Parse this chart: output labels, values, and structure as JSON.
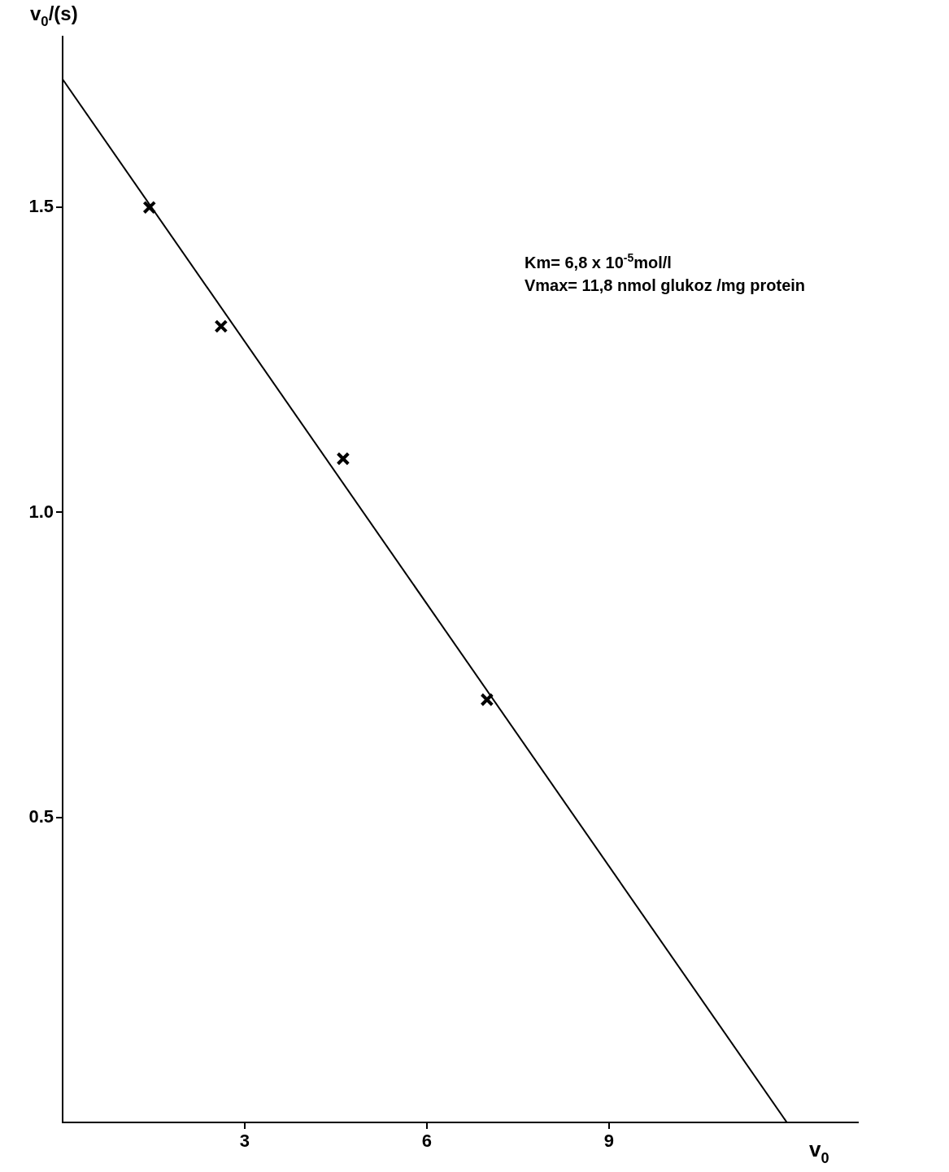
{
  "chart_data": {
    "type": "scatter",
    "xlabel": "v$_{0}$",
    "ylabel": "v$_{0}$/(s)",
    "xlim": [
      0,
      13.1
    ],
    "ylim": [
      0,
      1.78
    ],
    "xticks": [
      3,
      6,
      9
    ],
    "yticks": [
      0.5,
      {
        "value": 1,
        "label": "1.0"
      },
      1.5
    ],
    "grid": false,
    "legend": false,
    "series": [
      {
        "type": "scatter",
        "marker": "cross",
        "color": "#000000",
        "x": [
          1.43,
          2.61,
          4.62,
          6.99
        ],
        "values": [
          1.5,
          1.305,
          1.088,
          0.693
        ]
      },
      {
        "type": "line",
        "marker": "none",
        "line_style": "solid",
        "color": "#000000",
        "x": [
          0,
          11.93
        ],
        "values": [
          1.71,
          0
        ]
      }
    ],
    "annotations": [
      "Km= 6,8 x 10$^{-5}$mol/l",
      "Vmax= 11,8 nmol glukoz /mg protein"
    ]
  }
}
